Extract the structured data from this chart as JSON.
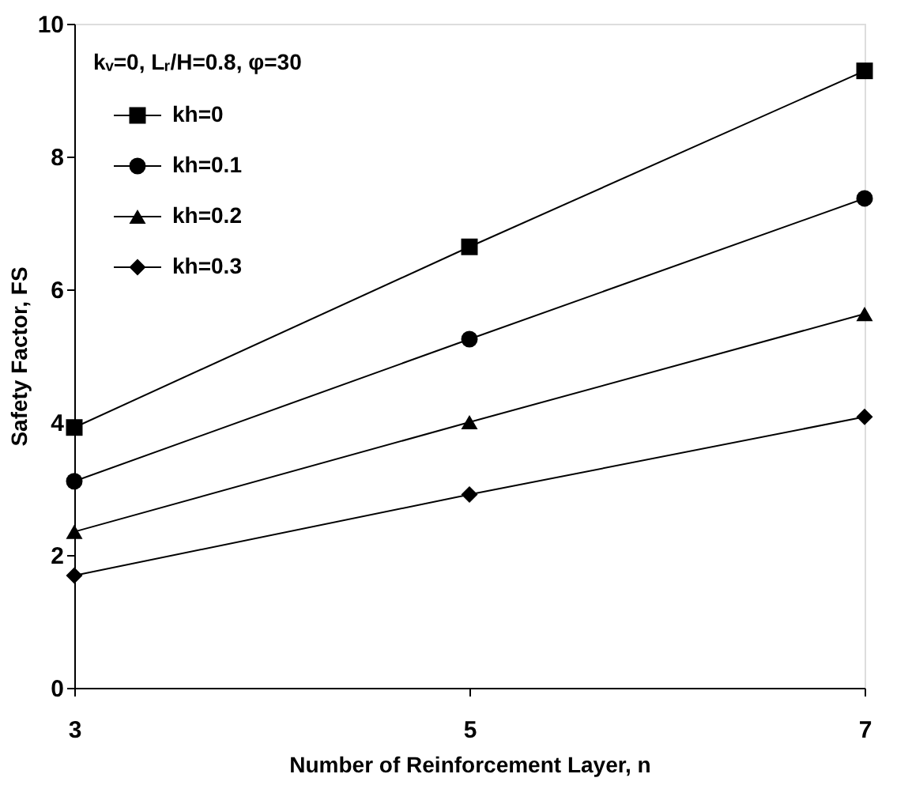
{
  "chart_data": {
    "type": "line",
    "xlabel": "Number of Reinforcement Layer, n",
    "ylabel": "Safety Factor, FS",
    "annotations": [
      "kᵥ=0, Lᵣ/H=0.8, φ=30"
    ],
    "x": [
      3,
      5,
      7
    ],
    "xlim": [
      3,
      7
    ],
    "xticks": [
      3,
      5,
      7
    ],
    "ylim": [
      0,
      10
    ],
    "yticks": [
      0,
      2,
      4,
      6,
      8,
      10
    ],
    "grid": false,
    "legend": "top left",
    "line_style": "solid",
    "series": [
      {
        "name": "kh=0",
        "color": "#000000",
        "marker": "square",
        "values": [
          3.92,
          6.64,
          9.29
        ]
      },
      {
        "name": "kh=0.1",
        "color": "#000000",
        "marker": "circle",
        "values": [
          3.11,
          5.25,
          7.37
        ]
      },
      {
        "name": "kh=0.2",
        "color": "#000000",
        "marker": "triangle",
        "values": [
          2.35,
          4.0,
          5.63
        ]
      },
      {
        "name": "kh=0.3",
        "color": "#000000",
        "marker": "diamond",
        "values": [
          1.69,
          2.91,
          4.08
        ]
      }
    ]
  }
}
